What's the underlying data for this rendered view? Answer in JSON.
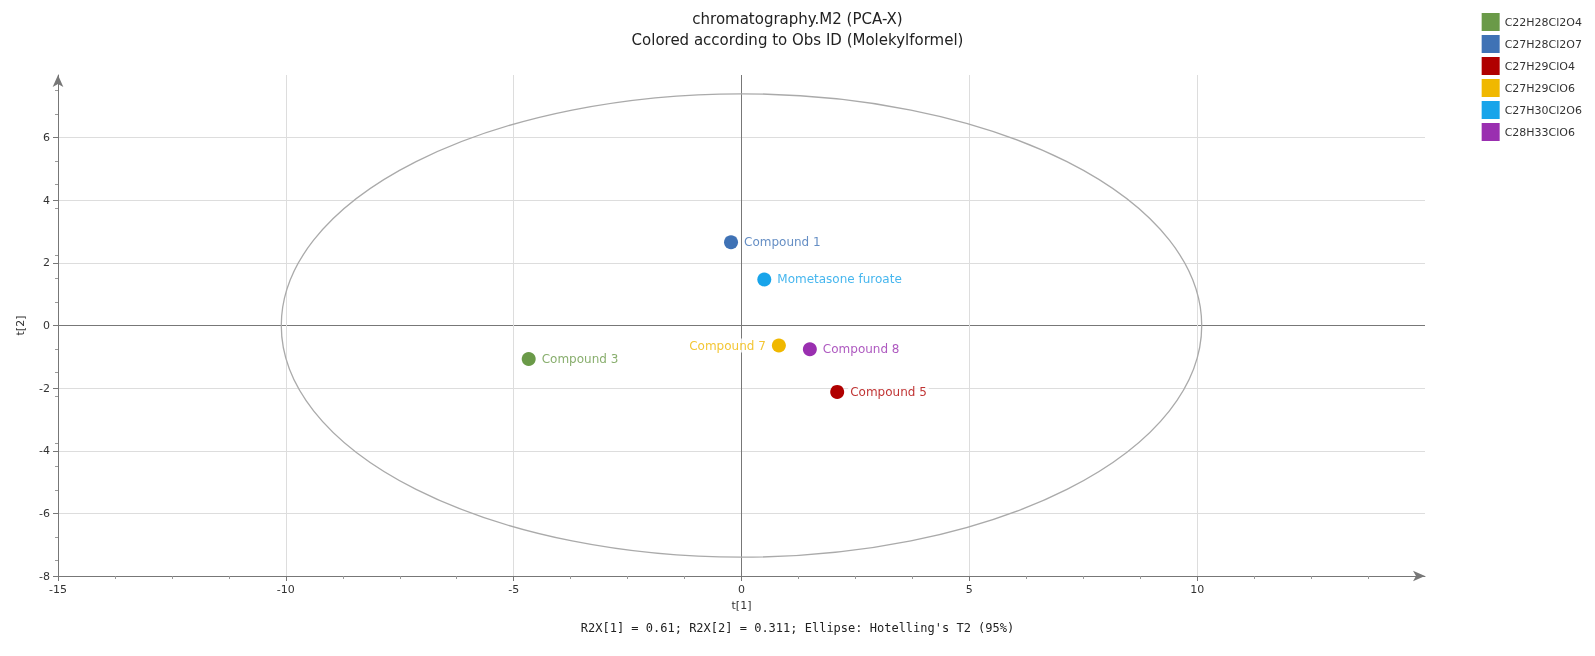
{
  "chart_data": {
    "type": "scatter",
    "title": "chromatography.M2 (PCA-X)",
    "subtitle": "Colored according to Obs ID (Molekylformel)",
    "xlabel": "t[1]",
    "ylabel": "t[2]",
    "xlim": [
      -15,
      15
    ],
    "xticks": [
      -15,
      -10,
      -5,
      0,
      5,
      10
    ],
    "ylim": [
      -8,
      8
    ],
    "yticks": [
      -8,
      -6,
      -4,
      -2,
      0,
      2,
      4,
      6
    ],
    "grid": true,
    "legend": "top right",
    "marker": "circle",
    "series": [
      {
        "name": "C22H28Cl2O4",
        "color": "#6a9a48",
        "x": [
          -4.67
        ],
        "values": [
          -1.07
        ]
      },
      {
        "name": "C27H28Cl2O7",
        "color": "#3f72b5",
        "x": [
          -0.23
        ],
        "values": [
          2.66
        ]
      },
      {
        "name": "C27H29ClO4",
        "color": "#b00000",
        "x": [
          2.1
        ],
        "values": [
          -2.12
        ]
      },
      {
        "name": "C27H29ClO6",
        "color": "#f0b800",
        "x": [
          0.82
        ],
        "values": [
          -0.64
        ]
      },
      {
        "name": "C27H30Cl2O6",
        "color": "#18a4ea",
        "x": [
          0.5
        ],
        "values": [
          1.47
        ]
      },
      {
        "name": "C28H33ClO6",
        "color": "#9a2fb0",
        "x": [
          1.5
        ],
        "values": [
          -0.76
        ]
      }
    ],
    "annotations": [
      {
        "text": "Compound 3",
        "x": -4.67,
        "y": -1.07
      },
      {
        "text": "Compound 1",
        "x": -0.23,
        "y": 2.66
      },
      {
        "text": "Compound 5",
        "x": 2.1,
        "y": -2.12
      },
      {
        "text": "Compound 7",
        "x": 0.82,
        "y": -0.64
      },
      {
        "text": "Mometasone furoate",
        "x": 0.5,
        "y": 1.47
      },
      {
        "text": "Compound 8",
        "x": 1.5,
        "y": -0.76
      },
      "R2X[1] = 0.61; R2X[2] = 0.311; Ellipse: Hotelling's T2 (95%)"
    ]
  }
}
